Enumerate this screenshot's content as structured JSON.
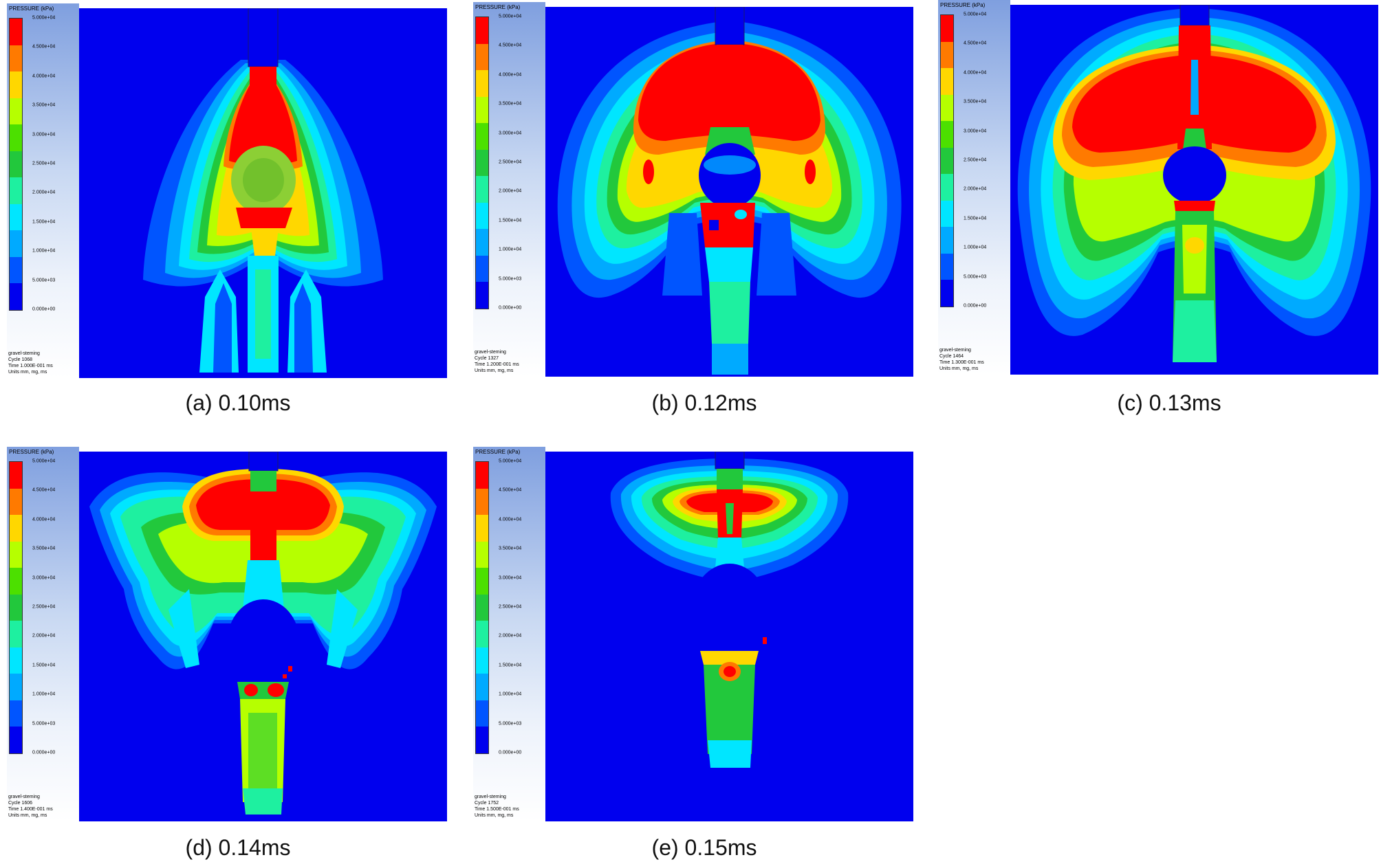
{
  "legend": {
    "title": "PRESSURE (kPa)",
    "ticks": [
      "5.000e+04",
      "4.500e+04",
      "4.000e+04",
      "3.500e+04",
      "3.000e+04",
      "2.500e+04",
      "2.000e+04",
      "1.500e+04",
      "1.000e+04",
      "5.000e+03",
      "0.000e+00"
    ],
    "colors": [
      "#ff0000",
      "#ff7a00",
      "#ffd700",
      "#b6ff00",
      "#4ce000",
      "#22c83c",
      "#1ef0a0",
      "#00e6ff",
      "#00aaff",
      "#0055ff",
      "#0000ee"
    ]
  },
  "panels": [
    {
      "caption": "(a)  0.10ms",
      "meta": [
        "gravel-steming",
        "Cycle 1068",
        "Time 1.000E-001 ms",
        "Units mm, mg, ms"
      ]
    },
    {
      "caption": "(b)  0.12ms",
      "meta": [
        "gravel-steming",
        "Cycle 1327",
        "Time 1.200E-001 ms",
        "Units mm, mg, ms"
      ]
    },
    {
      "caption": "(c)  0.13ms",
      "meta": [
        "gravel-steming",
        "Cycle 1464",
        "Time 1.300E-001 ms",
        "Units mm, mg, ms"
      ]
    },
    {
      "caption": "(d)  0.14ms",
      "meta": [
        "gravel-steming",
        "Cycle 1606",
        "Time 1.400E-001 ms",
        "Units mm, mg, ms"
      ]
    },
    {
      "caption": "(e)  0.15ms",
      "meta": [
        "gravel-steming",
        "Cycle 1752",
        "Time 1.500E-001 ms",
        "Units mm, mg, ms"
      ]
    }
  ]
}
